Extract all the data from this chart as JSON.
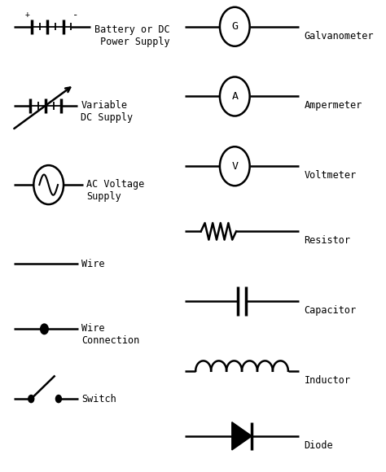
{
  "background_color": "#ffffff",
  "line_color": "#000000",
  "text_color": "#000000",
  "font_family": "monospace",
  "label_fontsize": 9.5,
  "fig_width": 4.74,
  "fig_height": 5.8,
  "dpi": 100,
  "xlim": [
    0,
    10
  ],
  "ylim": [
    0,
    10
  ],
  "rows_left": {
    "battery": 9.5,
    "variable": 7.8,
    "ac": 6.1,
    "wire": 4.4,
    "wire_conn": 3.0,
    "switch": 1.5
  },
  "rows_right": {
    "galvanometer": 9.5,
    "ampermeter": 8.0,
    "voltmeter": 6.5,
    "resistor": 5.1,
    "capacitor": 3.6,
    "inductor": 2.1,
    "diode": 0.7
  }
}
